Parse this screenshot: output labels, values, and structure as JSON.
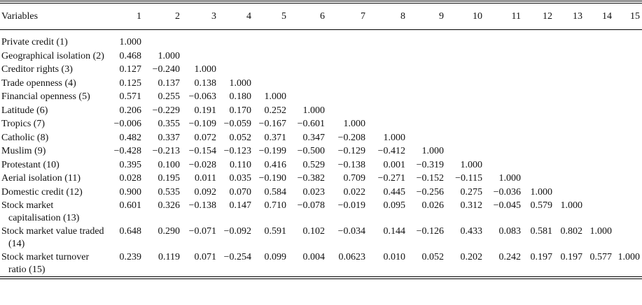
{
  "table": {
    "header": [
      "Variables",
      "1",
      "2",
      "3",
      "4",
      "5",
      "6",
      "7",
      "8",
      "9",
      "10",
      "11",
      "12",
      "13",
      "14",
      "15"
    ],
    "rows": [
      {
        "label": "Private credit (1)",
        "values": [
          "1.000"
        ]
      },
      {
        "label": "Geographical isolation (2)",
        "values": [
          "0.468",
          "1.000"
        ]
      },
      {
        "label": "Creditor rights (3)",
        "values": [
          "0.127",
          "−0.240",
          "1.000"
        ]
      },
      {
        "label": "Trade openness (4)",
        "values": [
          "0.125",
          "0.137",
          "0.138",
          "1.000"
        ]
      },
      {
        "label": "Financial openness (5)",
        "values": [
          "0.571",
          "0.255",
          "−0.063",
          "0.180",
          "1.000"
        ]
      },
      {
        "label": "Latitude (6)",
        "values": [
          "0.206",
          "−0.229",
          "0.191",
          "0.170",
          "0.252",
          "1.000"
        ]
      },
      {
        "label": "Tropics (7)",
        "values": [
          "−0.006",
          "0.355",
          "−0.109",
          "−0.059",
          "−0.167",
          "−0.601",
          "1.000"
        ]
      },
      {
        "label": "Catholic (8)",
        "values": [
          "0.482",
          "0.337",
          "0.072",
          "0.052",
          "0.371",
          "0.347",
          "−0.208",
          "1.000"
        ]
      },
      {
        "label": "Muslim (9)",
        "values": [
          "−0.428",
          "−0.213",
          "−0.154",
          "−0.123",
          "−0.199",
          "−0.500",
          "−0.129",
          "−0.412",
          "1.000"
        ]
      },
      {
        "label": "Protestant (10)",
        "values": [
          "0.395",
          "0.100",
          "−0.028",
          "0.110",
          "0.416",
          "0.529",
          "−0.138",
          "0.001",
          "−0.319",
          "1.000"
        ]
      },
      {
        "label": "Aerial isolation (11)",
        "values": [
          "0.028",
          "0.195",
          "0.011",
          "0.035",
          "−0.190",
          "−0.382",
          "0.709",
          "−0.271",
          "−0.152",
          "−0.115",
          "1.000"
        ]
      },
      {
        "label": "Domestic credit (12)",
        "values": [
          "0.900",
          "0.535",
          "0.092",
          "0.070",
          "0.584",
          "0.023",
          "0.022",
          "0.445",
          "−0.256",
          "0.275",
          "−0.036",
          "1.000"
        ]
      },
      {
        "label": "Stock market capitalisation (13)",
        "values": [
          "0.601",
          "0.326",
          "−0.138",
          "0.147",
          "0.710",
          "−0.078",
          "−0.019",
          "0.095",
          "0.026",
          "0.312",
          "−0.045",
          "0.579",
          "1.000"
        ]
      },
      {
        "label": "Stock market value traded (14)",
        "values": [
          "0.648",
          "0.290",
          "−0.071",
          "−0.092",
          "0.591",
          "0.102",
          "−0.034",
          "0.144",
          "−0.126",
          "0.433",
          "0.083",
          "0.581",
          "0.802",
          "1.000"
        ]
      },
      {
        "label": "Stock market turnover ratio (15)",
        "values": [
          "0.239",
          "0.119",
          "0.071",
          "−0.254",
          "0.099",
          "0.004",
          "0.0623",
          "0.010",
          "0.052",
          "0.202",
          "0.242",
          "0.197",
          "0.197",
          "0.577",
          "1.000"
        ]
      }
    ]
  }
}
